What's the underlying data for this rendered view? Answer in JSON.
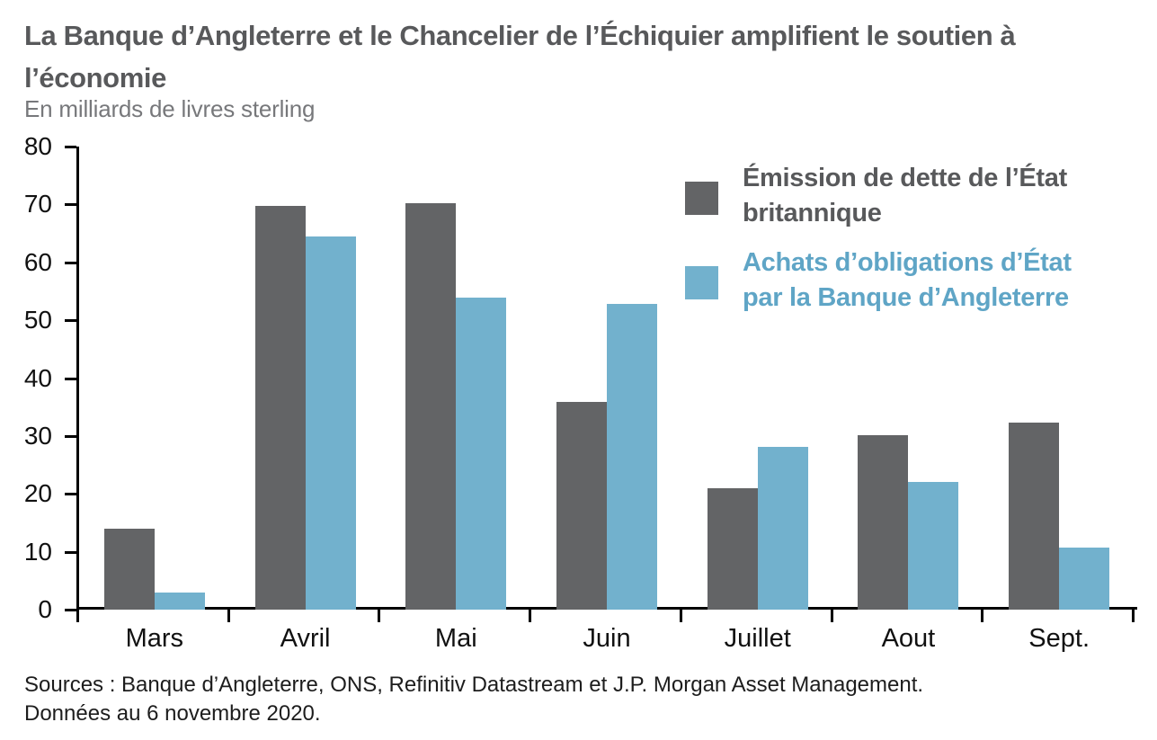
{
  "header": {
    "title_line1": "La Banque d’Angleterre et le Chancelier de l’Échiquier amplifient le soutien à",
    "title_line2": "l’économie",
    "subtitle": "En milliards de livres sterling"
  },
  "chart_data": {
    "type": "bar",
    "title": "La Banque d’Angleterre et le Chancelier de l’Échiquier amplifient le soutien à l’économie",
    "subtitle": "En milliards de livres sterling",
    "categories": [
      "Mars",
      "Avril",
      "Mai",
      "Juin",
      "Juillet",
      "Aout",
      "Sept."
    ],
    "series": [
      {
        "name": "Émission de dette de l’État britannique",
        "color": "#636466",
        "values": [
          14,
          69.7,
          70.2,
          35.9,
          20.9,
          30.1,
          32.3
        ]
      },
      {
        "name": "Achats d’obligations d’État par la Banque d’Angleterre",
        "color": "#72b1cd",
        "values": [
          3,
          64.5,
          53.9,
          52.8,
          28.1,
          22.1,
          10.7
        ]
      }
    ],
    "xlabel": "",
    "ylabel": "En milliards de livres sterling",
    "ylim": [
      0,
      80
    ],
    "yticks": [
      0,
      10,
      20,
      30,
      40,
      50,
      60,
      70,
      80
    ],
    "grid": false,
    "legend_position": "top-right"
  },
  "legend": {
    "items": [
      {
        "label": "Émission de dette de l’État\nbritannique",
        "color": "#636466",
        "text_color": "#58595b"
      },
      {
        "label": "Achats d’obligations d’État\npar la Banque d’Angleterre",
        "color": "#72b1cd",
        "text_color": "#5fa5c6"
      }
    ]
  },
  "footer": {
    "sources_line1": "Sources : Banque d’Angleterre, ONS, Refinitiv Datastream et J.P. Morgan Asset Management.",
    "sources_line2": "Données au 6 novembre 2020."
  },
  "colors": {
    "series1": "#636466",
    "series2": "#72b1cd",
    "title_text": "#58595b",
    "subtitle_text": "#77787b",
    "axis": "#000000"
  }
}
